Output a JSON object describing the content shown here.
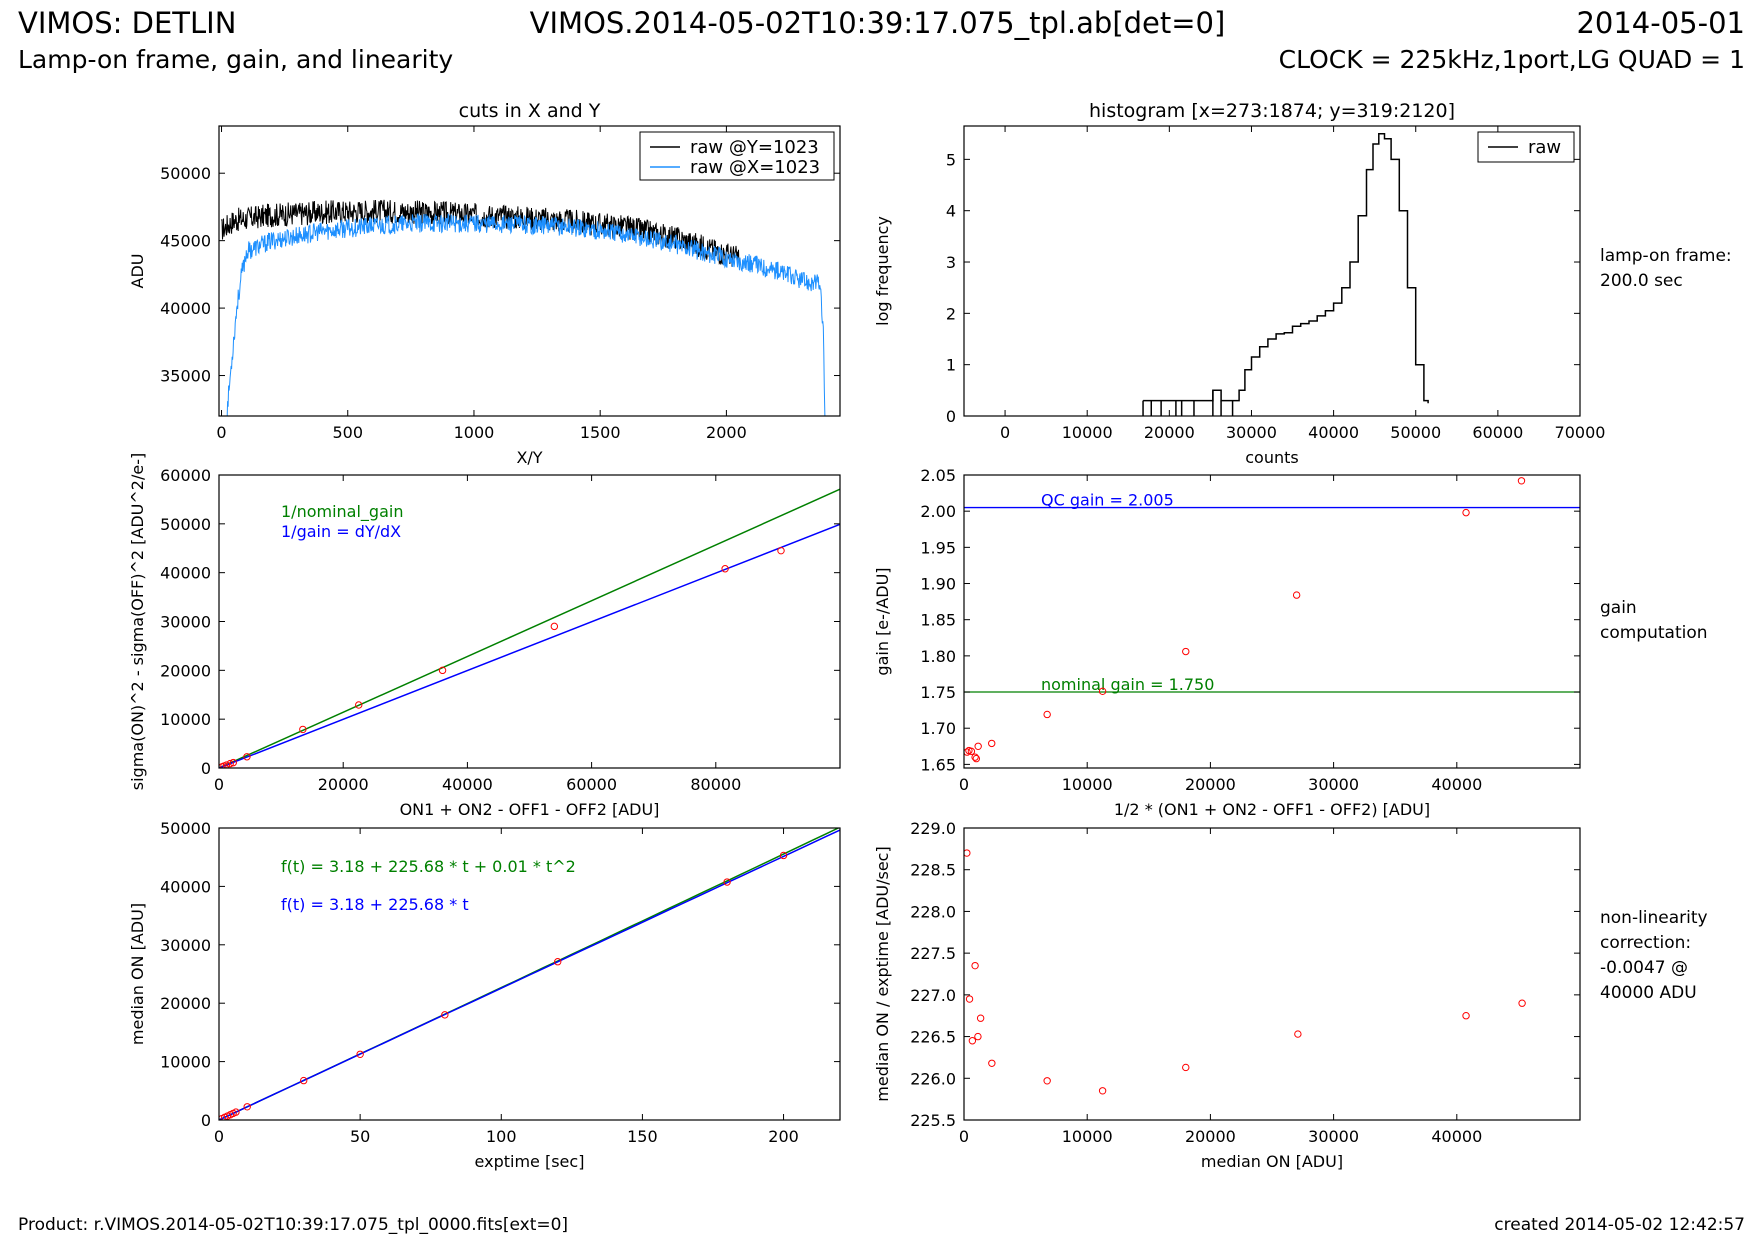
{
  "header": {
    "instrument": "VIMOS: DETLIN",
    "file": "VIMOS.2014-05-02T10:39:17.075_tpl.ab[det=0]",
    "date": "2014-05-01",
    "subtitle": "Lamp-on frame, gain, and linearity",
    "clock": "CLOCK = 225kHz,1port,LG QUAD = 1"
  },
  "footer": {
    "product": "Product: r.VIMOS.2014-05-02T10:39:17.075_tpl_0000.fits[ext=0]",
    "created": "created 2014-05-02 12:42:57"
  },
  "side_notes": {
    "row1": [
      "lamp-on frame:",
      "200.0 sec"
    ],
    "row2": [
      "gain",
      "computation"
    ],
    "row3": [
      "non-linearity",
      "correction:",
      "-0.0047 @",
      "40000 ADU"
    ]
  },
  "colors": {
    "black": "#000000",
    "blue_cut": "#1e90ff",
    "fit_blue": "#0000ff",
    "fit_green": "#008000",
    "points": "#ff0000"
  },
  "chart_data": [
    {
      "id": "cuts",
      "type": "line",
      "title": "cuts in X and Y",
      "xlabel": "X/Y",
      "ylabel": "ADU",
      "xlim": [
        -10,
        2450
      ],
      "ylim": [
        32000,
        53500
      ],
      "xticks": [
        0,
        500,
        1000,
        1500,
        2000
      ],
      "xtick_labels": [
        "0",
        "500",
        "1000",
        "1500",
        "2000"
      ],
      "yticks": [
        35000,
        40000,
        45000,
        50000
      ],
      "ytick_labels": [
        "35000",
        "40000",
        "45000",
        "50000"
      ],
      "legend": {
        "position": "top-right"
      },
      "series": [
        {
          "name": "raw @Y=1023",
          "color": "#000000",
          "x": [
            0,
            50,
            200,
            400,
            600,
            800,
            1000,
            1200,
            1400,
            1600,
            1800,
            2000,
            2050
          ],
          "y": [
            45800,
            46500,
            46900,
            47100,
            47200,
            47100,
            46900,
            46700,
            46400,
            46000,
            45200,
            44000,
            43700
          ]
        },
        {
          "name": "raw @X=1023",
          "color": "#1e90ff",
          "x": [
            20,
            40,
            60,
            80,
            100,
            200,
            400,
            600,
            800,
            1000,
            1200,
            1400,
            1600,
            1800,
            2000,
            2100,
            2200,
            2300,
            2370,
            2385,
            2390
          ],
          "y": [
            32000,
            36000,
            40000,
            42500,
            44200,
            45000,
            45700,
            46100,
            46300,
            46300,
            46200,
            46000,
            45500,
            44700,
            43700,
            43300,
            42800,
            42000,
            41800,
            38000,
            32000
          ]
        }
      ]
    },
    {
      "id": "histogram",
      "type": "line",
      "title": "histogram [x=273:1874; y=319:2120]",
      "xlabel": "counts",
      "ylabel": "log frequency",
      "xlim": [
        -5000,
        70000
      ],
      "ylim": [
        0,
        5.65
      ],
      "xticks": [
        0,
        10000,
        20000,
        30000,
        40000,
        50000,
        60000,
        70000
      ],
      "xtick_labels": [
        "0",
        "10000",
        "20000",
        "30000",
        "40000",
        "50000",
        "60000",
        "70000"
      ],
      "yticks": [
        0,
        1,
        2,
        3,
        4,
        5
      ],
      "ytick_labels": [
        "0",
        "1",
        "2",
        "3",
        "4",
        "5"
      ],
      "legend": {
        "position": "top-right"
      },
      "series": [
        {
          "name": "raw",
          "color": "#000000",
          "x": [
            16800,
            17800,
            19000,
            20800,
            21500,
            23000,
            25300,
            26300,
            27700,
            28500,
            29200,
            30000,
            31000,
            32000,
            33000,
            34000,
            35000,
            36000,
            37000,
            38000,
            39000,
            40000,
            41000,
            42000,
            43000,
            44000,
            44800,
            45500,
            46200,
            47000,
            48000,
            49000,
            50000,
            51000,
            51500
          ],
          "y": [
            0.3,
            0.3,
            0.3,
            0.3,
            0.3,
            0.3,
            0.5,
            0.3,
            0.3,
            0.5,
            0.9,
            1.15,
            1.35,
            1.5,
            1.6,
            1.62,
            1.75,
            1.8,
            1.85,
            1.95,
            2.05,
            2.2,
            2.5,
            3.0,
            3.9,
            4.8,
            5.3,
            5.5,
            5.4,
            5.0,
            4.0,
            2.5,
            1.0,
            0.3,
            0.25
          ]
        }
      ]
    },
    {
      "id": "variance",
      "type": "scatter",
      "title": "",
      "xlabel": "ON1 + ON2 - OFF1 - OFF2 [ADU]",
      "ylabel": "sigma(ON)^2 - sigma(OFF)^2 [ADU^2/e-]",
      "xlim": [
        0,
        100000
      ],
      "ylim": [
        0,
        60000
      ],
      "xticks": [
        0,
        20000,
        40000,
        60000,
        80000
      ],
      "xtick_labels": [
        "0",
        "20000",
        "40000",
        "60000",
        "80000"
      ],
      "yticks": [
        0,
        10000,
        20000,
        30000,
        40000,
        50000,
        60000
      ],
      "ytick_labels": [
        "0",
        "10000",
        "20000",
        "30000",
        "40000",
        "50000",
        "60000"
      ],
      "annotations": [
        {
          "text": "1/nominal_gain",
          "color": "#008000"
        },
        {
          "text": "1/gain = dY/dX",
          "color": "#0000ff"
        }
      ],
      "lines": [
        {
          "name": "1/nominal_gain",
          "color": "#008000",
          "x": [
            0,
            100000
          ],
          "y": [
            0,
            57100
          ]
        },
        {
          "name": "1/gain = dY/dX",
          "color": "#0000ff",
          "x": [
            0,
            100000
          ],
          "y": [
            0,
            49900
          ]
        }
      ],
      "points": {
        "x": [
          500,
          800,
          1200,
          1800,
          2300,
          4500,
          13500,
          22500,
          36000,
          54000,
          81500,
          90500
        ],
        "y": [
          250,
          400,
          600,
          900,
          1100,
          2300,
          7900,
          12900,
          20000,
          29000,
          40800,
          44500
        ]
      }
    },
    {
      "id": "gain",
      "type": "scatter",
      "title": "",
      "xlabel": "1/2 * (ON1 + ON2 - OFF1 - OFF2) [ADU]",
      "ylabel": "gain [e-/ADU]",
      "xlim": [
        0,
        50000
      ],
      "ylim": [
        1.645,
        2.05
      ],
      "xticks": [
        0,
        10000,
        20000,
        30000,
        40000
      ],
      "xtick_labels": [
        "0",
        "10000",
        "20000",
        "30000",
        "40000"
      ],
      "yticks": [
        1.65,
        1.7,
        1.75,
        1.8,
        1.85,
        1.9,
        1.95,
        2.0,
        2.05
      ],
      "ytick_labels": [
        "1.65",
        "1.70",
        "1.75",
        "1.80",
        "1.85",
        "1.90",
        "1.95",
        "2.00",
        "2.05"
      ],
      "hlines": [
        {
          "label": "QC gain = 2.005",
          "y": 2.005,
          "color": "#0000ff"
        },
        {
          "label": "nominal gain = 1.750",
          "y": 1.75,
          "color": "#008000"
        }
      ],
      "points": {
        "x": [
          250,
          400,
          600,
          900,
          1000,
          1150,
          2250,
          6750,
          11250,
          18000,
          27000,
          40750,
          45250
        ],
        "y": [
          1.667,
          1.669,
          1.668,
          1.66,
          1.658,
          1.675,
          1.679,
          1.719,
          1.751,
          1.806,
          1.884,
          1.998,
          2.042
        ]
      }
    },
    {
      "id": "linearity",
      "type": "scatter",
      "title": "",
      "xlabel": "exptime [sec]",
      "ylabel": "median ON [ADU]",
      "xlim": [
        0,
        220
      ],
      "ylim": [
        0,
        50000
      ],
      "xticks": [
        0,
        50,
        100,
        150,
        200
      ],
      "xtick_labels": [
        "0",
        "50",
        "100",
        "150",
        "200"
      ],
      "yticks": [
        0,
        10000,
        20000,
        30000,
        40000,
        50000
      ],
      "ytick_labels": [
        "0",
        "10000",
        "20000",
        "30000",
        "40000",
        "50000"
      ],
      "annotations": [
        {
          "text": "f(t) =   3.18 + 225.68 * t +   0.01 * t^2",
          "color": "#008000"
        },
        {
          "text": "f(t) =   3.18 + 225.68 * t",
          "color": "#0000ff"
        }
      ],
      "fits": [
        {
          "color": "#008000",
          "a": 3.18,
          "b": 225.68,
          "c": 0.01
        },
        {
          "color": "#0000ff",
          "a": 3.18,
          "b": 225.68,
          "c": 0
        }
      ],
      "points": {
        "x": [
          1,
          2,
          3,
          4,
          5,
          6,
          10,
          30,
          50,
          80,
          120,
          180,
          200
        ],
        "y": [
          230,
          450,
          680,
          900,
          1130,
          1350,
          2260,
          6750,
          11250,
          18000,
          27100,
          40750,
          45300
        ]
      }
    },
    {
      "id": "nonlinearity",
      "type": "scatter",
      "title": "",
      "xlabel": "median ON [ADU]",
      "ylabel": "median ON / exptime [ADU/sec]",
      "xlim": [
        0,
        50000
      ],
      "ylim": [
        225.5,
        229.0
      ],
      "xticks": [
        0,
        10000,
        20000,
        30000,
        40000
      ],
      "xtick_labels": [
        "0",
        "10000",
        "20000",
        "30000",
        "40000"
      ],
      "yticks": [
        225.5,
        226.0,
        226.5,
        227.0,
        227.5,
        228.0,
        228.5,
        229.0
      ],
      "ytick_labels": [
        "225.5",
        "226.0",
        "226.5",
        "227.0",
        "227.5",
        "228.0",
        "228.5",
        "229.0"
      ],
      "points": {
        "x": [
          230,
          450,
          680,
          900,
          1130,
          1350,
          2260,
          6750,
          11250,
          18000,
          27100,
          40750,
          45300
        ],
        "y": [
          228.7,
          226.95,
          226.45,
          227.35,
          226.5,
          226.72,
          226.18,
          225.97,
          225.85,
          226.13,
          226.53,
          226.75,
          226.9
        ]
      }
    }
  ]
}
